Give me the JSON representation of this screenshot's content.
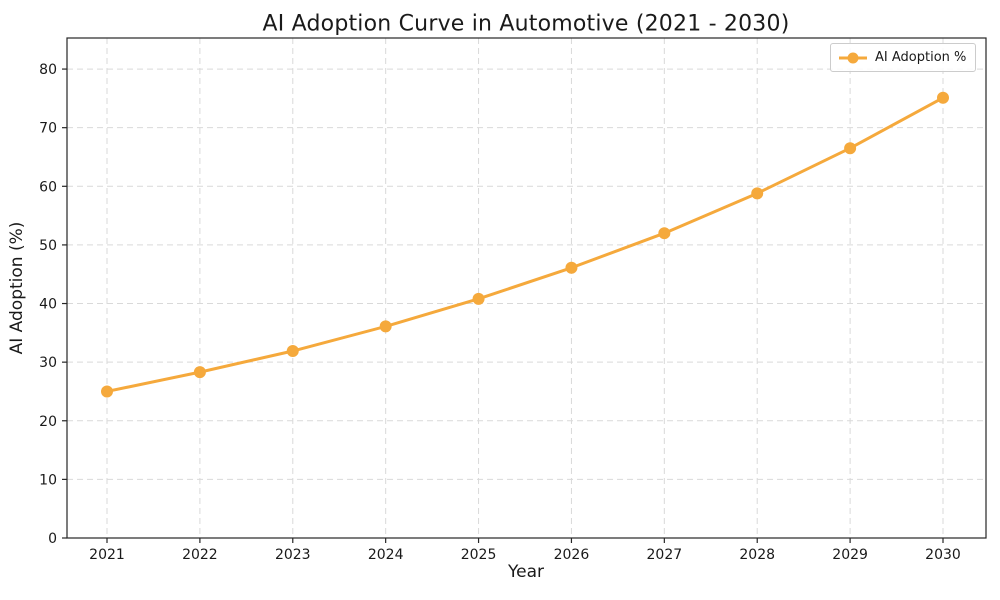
{
  "figure": {
    "background": "#ffffff"
  },
  "chart_data": {
    "type": "line",
    "title": "AI Adoption Curve in Automotive (2021 - 2030)",
    "xlabel": "Year",
    "ylabel": "AI Adoption (%)",
    "categories": [
      "2021",
      "2022",
      "2023",
      "2024",
      "2025",
      "2026",
      "2027",
      "2028",
      "2029",
      "2030"
    ],
    "series": [
      {
        "name": "AI Adoption %",
        "values": [
          25.0,
          28.3,
          31.9,
          36.1,
          40.8,
          46.1,
          52.0,
          58.8,
          66.5,
          75.1
        ],
        "color": "#F5A93C",
        "marker": "circle",
        "marker_radius": 6,
        "line_width": 3
      }
    ],
    "ylim": [
      0,
      85.3
    ],
    "yticks": [
      0,
      10,
      20,
      30,
      40,
      50,
      60,
      70,
      80
    ],
    "grid": true,
    "grid_style": "dashed",
    "grid_color": "#D9D9D9",
    "axis_color": "#262626",
    "text_color": "#1A1A1A",
    "legend": {
      "position": "upper right",
      "labels": [
        "AI Adoption %"
      ]
    }
  }
}
